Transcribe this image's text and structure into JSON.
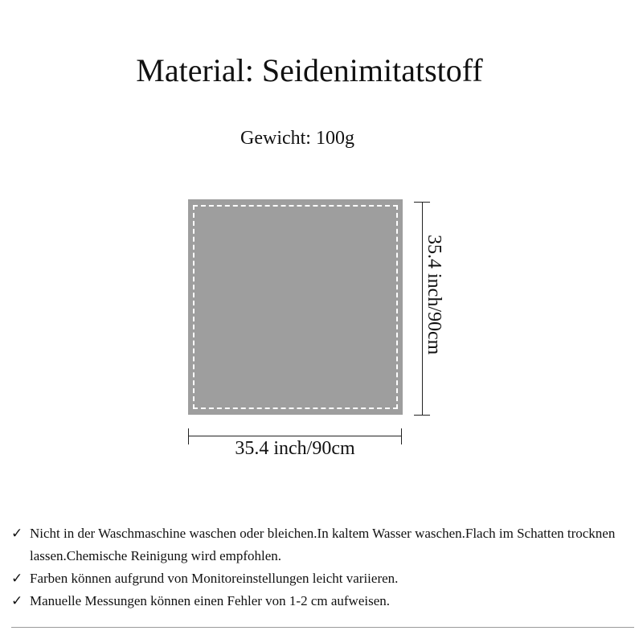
{
  "title": "Material: Seidenimitatstoff",
  "weight": "Gewicht: 100g",
  "dimensions": {
    "height_label": "35.4 inch/90cm",
    "width_label": "35.4 inch/90cm"
  },
  "fabric_color": "#9e9e9e",
  "notes": [
    {
      "icon": "check-icon",
      "mark": "✓",
      "text": "Nicht in der Waschmaschine waschen oder bleichen.In kaltem Wasser waschen.Flach im Schatten trocknen lassen.Chemische Reinigung wird empfohlen."
    },
    {
      "icon": "check-icon",
      "mark": "✓",
      "text": "Farben können aufgrund von Monitoreinstellungen leicht variieren."
    },
    {
      "icon": "check-icon",
      "mark": "✓",
      "text": "Manuelle Messungen können einen Fehler von 1-2 cm aufweisen."
    }
  ]
}
